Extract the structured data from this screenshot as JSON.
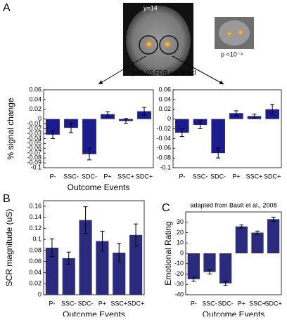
{
  "figure": {
    "panel_labels": [
      "A",
      "B",
      "C"
    ],
    "slice_label": "y=14",
    "inset_label": "p <10⁻⁴",
    "threshold_label": "p <0.05 FDR corrected"
  },
  "chart_data": [
    {
      "type": "bar",
      "ylabel": "% signal change",
      "xlabel": "Outcome Events",
      "categories": [
        "P-",
        "SSC-",
        "SDC-",
        "P+",
        "SSC+",
        "SDC+"
      ],
      "values": [
        -0.032,
        -0.018,
        -0.072,
        0.01,
        -0.004,
        0.016
      ],
      "errors": [
        0.008,
        0.01,
        0.012,
        0.005,
        0.005,
        0.008
      ],
      "color": "#1c1c8e",
      "ylim": [
        -0.1,
        0.06
      ],
      "yticks": [
        -0.1,
        -0.09,
        -0.08,
        -0.07,
        -0.06,
        -0.05,
        -0.04,
        -0.03,
        -0.02,
        -0.01,
        0,
        0.02,
        0.04,
        0.06
      ]
    },
    {
      "type": "bar",
      "categories": [
        "P-",
        "SSC-",
        "SDC-",
        "P+",
        "SSC+",
        "SDC+"
      ],
      "values": [
        -0.028,
        -0.012,
        -0.07,
        0.012,
        0.006,
        0.02
      ],
      "errors": [
        0.008,
        0.008,
        0.01,
        0.005,
        0.004,
        0.01
      ],
      "color": "#1c1c8e",
      "ylim": [
        -0.1,
        0.06
      ],
      "yticks": [
        -0.1,
        -0.08,
        -0.06,
        -0.04,
        -0.02,
        0,
        0.02,
        0.04,
        0.06
      ]
    },
    {
      "type": "bar",
      "ylabel": "SCR magnitude (uS)",
      "xlabel": "Outcome Events",
      "categories": [
        "P-",
        "SSC-",
        "SDC-",
        "P+",
        "SSC+",
        "SDC+"
      ],
      "values": [
        0.085,
        0.066,
        0.135,
        0.097,
        0.076,
        0.108
      ],
      "errors": [
        0.016,
        0.011,
        0.024,
        0.018,
        0.017,
        0.02
      ],
      "color": "#2a2a7e",
      "ylim": [
        0,
        0.17
      ],
      "yticks": [
        0,
        0.02,
        0.04,
        0.06,
        0.08,
        0.1,
        0.12,
        0.14,
        0.16
      ]
    },
    {
      "type": "bar",
      "title": "adapted from Bault et al., 2008",
      "ylabel": "Emotional Rating",
      "xlabel": "Outcome Events",
      "categories": [
        "P-",
        "SSC-",
        "SDC-",
        "P+",
        "SSC+",
        "SDC+"
      ],
      "values": [
        -25,
        -18,
        -29,
        26,
        20,
        33
      ],
      "errors": [
        2,
        2,
        2,
        1.5,
        1.5,
        2
      ],
      "color": "#2a2a7e",
      "ylim": [
        -40,
        40
      ],
      "yticks": [
        -40,
        -30,
        -20,
        -10,
        0,
        10,
        20,
        30
      ]
    }
  ]
}
